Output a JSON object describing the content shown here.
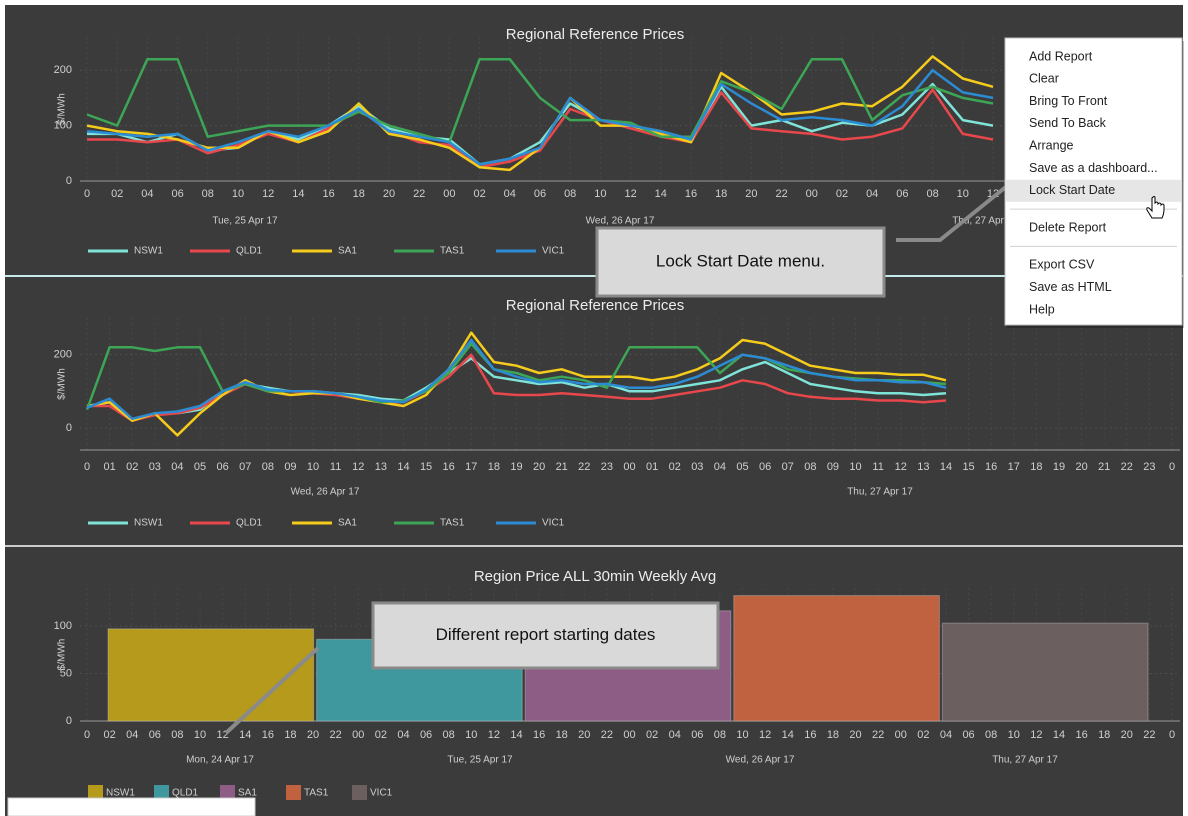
{
  "chart_data": [
    {
      "type": "line",
      "title": "Regional Reference Prices",
      "ylabel": "$/MWh",
      "categories": [
        "0",
        "02",
        "04",
        "06",
        "08",
        "10",
        "12",
        "14",
        "16",
        "18",
        "20",
        "22",
        "00",
        "02",
        "04",
        "06",
        "08",
        "10",
        "12",
        "14",
        "16",
        "18",
        "20",
        "22",
        "00",
        "02",
        "04",
        "06",
        "08",
        "10",
        "12"
      ],
      "day_labels": [
        "Tue, 25 Apr 17",
        "Wed, 26 Apr 17",
        "Thu, 27 Apr 17"
      ],
      "ylim": [
        0,
        260
      ],
      "yticks": [
        0,
        100,
        200
      ],
      "grid": true,
      "series": [
        {
          "name": "NSW1",
          "color": "#7fe3d8",
          "values": [
            85,
            85,
            70,
            85,
            55,
            60,
            90,
            75,
            100,
            135,
            95,
            80,
            75,
            30,
            40,
            70,
            140,
            110,
            100,
            90,
            75,
            170,
            100,
            110,
            90,
            105,
            100,
            120,
            175,
            110,
            100
          ]
        },
        {
          "name": "QLD1",
          "color": "#e8474c",
          "values": [
            75,
            75,
            70,
            75,
            50,
            65,
            85,
            70,
            95,
            130,
            90,
            70,
            65,
            25,
            35,
            55,
            130,
            110,
            95,
            80,
            70,
            160,
            95,
            90,
            85,
            75,
            80,
            95,
            165,
            85,
            75
          ]
        },
        {
          "name": "SA1",
          "color": "#f5cb1c",
          "values": [
            100,
            90,
            85,
            75,
            60,
            60,
            90,
            70,
            90,
            140,
            85,
            75,
            60,
            25,
            20,
            60,
            150,
            100,
            100,
            85,
            70,
            195,
            160,
            120,
            125,
            140,
            135,
            170,
            225,
            185,
            170
          ]
        },
        {
          "name": "TAS1",
          "color": "#3da656",
          "values": [
            120,
            100,
            220,
            220,
            80,
            90,
            100,
            100,
            100,
            125,
            100,
            85,
            70,
            220,
            220,
            150,
            110,
            110,
            105,
            80,
            80,
            180,
            160,
            130,
            220,
            220,
            110,
            155,
            170,
            150,
            140
          ]
        },
        {
          "name": "VIC1",
          "color": "#2b8bd3",
          "values": [
            90,
            85,
            80,
            85,
            55,
            70,
            90,
            80,
            100,
            130,
            90,
            80,
            70,
            30,
            40,
            60,
            150,
            110,
            100,
            90,
            75,
            175,
            140,
            110,
            115,
            110,
            100,
            135,
            200,
            160,
            150
          ]
        }
      ]
    },
    {
      "type": "line",
      "title": "Regional Reference Prices",
      "ylabel": "$/MWh",
      "categories": [
        "0",
        "01",
        "02",
        "03",
        "04",
        "05",
        "06",
        "07",
        "08",
        "09",
        "10",
        "11",
        "12",
        "13",
        "14",
        "15",
        "16",
        "17",
        "18",
        "19",
        "20",
        "21",
        "22",
        "23",
        "00",
        "01",
        "02",
        "03",
        "04",
        "05",
        "06",
        "07",
        "08",
        "09",
        "10",
        "11",
        "12",
        "13",
        "14",
        "15",
        "16",
        "17",
        "18",
        "19",
        "20",
        "21",
        "22",
        "23",
        "0"
      ],
      "day_labels": [
        "Wed, 26 Apr 17",
        "Thu, 27 Apr 17"
      ],
      "ylim": [
        -60,
        300
      ],
      "yticks": [
        0,
        200
      ],
      "grid": true,
      "series": [
        {
          "name": "NSW1",
          "color": "#7fe3d8",
          "values": [
            60,
            70,
            20,
            40,
            40,
            50,
            100,
            120,
            110,
            100,
            100,
            95,
            90,
            80,
            75,
            110,
            150,
            190,
            140,
            130,
            120,
            125,
            110,
            120,
            100,
            100,
            110,
            120,
            130,
            160,
            180,
            150,
            120,
            110,
            100,
            95,
            95,
            90,
            95,
            null,
            null,
            null,
            null,
            null,
            null,
            null,
            null,
            null,
            null
          ]
        },
        {
          "name": "QLD1",
          "color": "#e8474c",
          "values": [
            60,
            60,
            20,
            35,
            40,
            55,
            90,
            120,
            100,
            100,
            95,
            90,
            80,
            70,
            70,
            100,
            140,
            200,
            95,
            90,
            90,
            95,
            90,
            85,
            80,
            80,
            90,
            100,
            110,
            130,
            120,
            95,
            85,
            80,
            80,
            75,
            75,
            70,
            75,
            null,
            null,
            null,
            null,
            null,
            null,
            null,
            null,
            null,
            null
          ]
        },
        {
          "name": "SA1",
          "color": "#f5cb1c",
          "values": [
            60,
            70,
            20,
            40,
            -20,
            40,
            90,
            130,
            100,
            90,
            95,
            95,
            80,
            70,
            60,
            90,
            160,
            260,
            180,
            170,
            150,
            160,
            140,
            140,
            140,
            130,
            140,
            160,
            190,
            240,
            230,
            200,
            170,
            160,
            150,
            150,
            145,
            145,
            130,
            null,
            null,
            null,
            null,
            null,
            null,
            null,
            null,
            null,
            null
          ]
        },
        {
          "name": "TAS1",
          "color": "#3da656",
          "values": [
            50,
            220,
            220,
            210,
            220,
            220,
            100,
            120,
            100,
            100,
            100,
            95,
            85,
            70,
            75,
            100,
            150,
            230,
            160,
            150,
            130,
            140,
            130,
            110,
            220,
            220,
            220,
            220,
            150,
            200,
            190,
            160,
            150,
            140,
            135,
            130,
            130,
            125,
            120,
            null,
            null,
            null,
            null,
            null,
            null,
            null,
            null,
            null,
            null
          ]
        },
        {
          "name": "VIC1",
          "color": "#2b8bd3",
          "values": [
            55,
            80,
            25,
            40,
            45,
            60,
            100,
            125,
            105,
            100,
            100,
            95,
            85,
            75,
            70,
            105,
            160,
            240,
            160,
            140,
            125,
            130,
            120,
            120,
            110,
            110,
            120,
            140,
            170,
            200,
            190,
            170,
            150,
            140,
            130,
            130,
            125,
            125,
            110,
            null,
            null,
            null,
            null,
            null,
            null,
            null,
            null,
            null,
            null
          ]
        }
      ]
    },
    {
      "type": "bar",
      "title": "Region Price ALL 30min Weekly Avg",
      "ylabel": "$/MWh",
      "categories": [
        "NSW1",
        "QLD1",
        "SA1",
        "TAS1",
        "VIC1"
      ],
      "values": [
        97,
        86,
        116,
        132,
        103
      ],
      "colors": [
        "#b59a1c",
        "#3f989e",
        "#8e5d86",
        "#c0613f",
        "#6b5f5f"
      ],
      "x_labels": [
        "0",
        "02",
        "04",
        "06",
        "08",
        "10",
        "12",
        "14",
        "16",
        "18",
        "20",
        "22",
        "00",
        "02",
        "04",
        "06",
        "08",
        "10",
        "12",
        "14",
        "16",
        "18",
        "20",
        "22",
        "00",
        "02",
        "04",
        "06",
        "08",
        "10",
        "12",
        "14",
        "16",
        "18",
        "20",
        "22",
        "00",
        "02",
        "04",
        "06",
        "08",
        "10",
        "12",
        "14",
        "16",
        "18",
        "20",
        "22",
        "0"
      ],
      "day_labels": [
        "Mon, 24 Apr 17",
        "Tue, 25 Apr 17",
        "Wed, 26 Apr 17",
        "Thu, 27 Apr 17"
      ],
      "ylim": [
        0,
        140
      ],
      "yticks": [
        0,
        50,
        100
      ],
      "grid": true
    }
  ],
  "menu": {
    "groups": [
      [
        "Add Report",
        "Clear",
        "Bring To Front",
        "Send To Back",
        "Arrange",
        "Save as a dashboard...",
        "Lock Start Date"
      ],
      [
        "Delete Report"
      ],
      [
        "Export CSV",
        "Save as HTML",
        "Help"
      ]
    ]
  },
  "callouts": [
    "Lock Start Date menu.",
    "Different report starting dates"
  ]
}
